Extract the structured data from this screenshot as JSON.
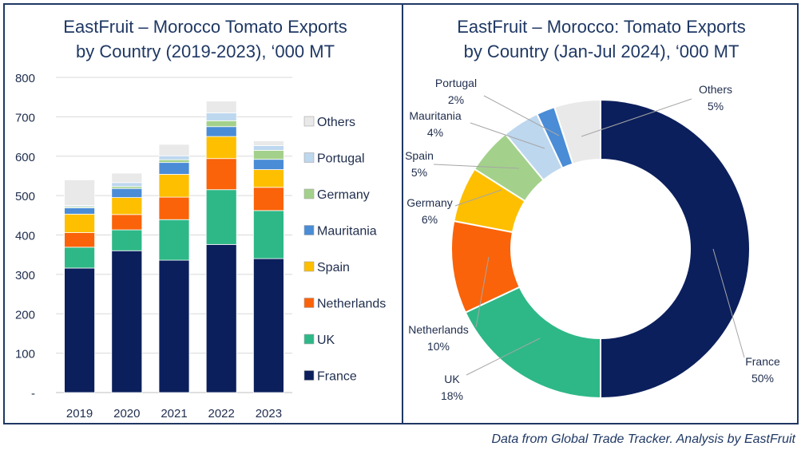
{
  "chart_data": [
    {
      "type": "bar",
      "stacked": true,
      "title": [
        "EastFruit – Morocco Tomato Exports",
        "by Country (2019-2023), ‘000 MT"
      ],
      "categories": [
        "2019",
        "2020",
        "2021",
        "2022",
        "2023"
      ],
      "ylim": [
        0,
        800
      ],
      "yticks": [
        0,
        100,
        200,
        300,
        400,
        500,
        600,
        700,
        800
      ],
      "ytick_labels": [
        "-",
        "100",
        "200",
        "300",
        "400",
        "500",
        "600",
        "700",
        "800"
      ],
      "grid": true,
      "legend_position": "right",
      "series": [
        {
          "name": "France",
          "color": "#0b1f5c",
          "values": [
            316,
            360,
            336,
            376,
            340
          ]
        },
        {
          "name": "UK",
          "color": "#2eb887",
          "values": [
            53,
            53,
            103,
            139,
            122
          ]
        },
        {
          "name": "Netherlands",
          "color": "#fa6309",
          "values": [
            37,
            39,
            57,
            79,
            59
          ]
        },
        {
          "name": "Spain",
          "color": "#fdbf00",
          "values": [
            47,
            43,
            58,
            56,
            45
          ]
        },
        {
          "name": "Mauritania",
          "color": "#4a8cd6",
          "values": [
            16,
            23,
            30,
            25,
            26
          ]
        },
        {
          "name": "Germany",
          "color": "#a3d18b",
          "values": [
            3,
            5,
            7,
            15,
            23
          ]
        },
        {
          "name": "Portugal",
          "color": "#bdd7ee",
          "values": [
            3,
            10,
            10,
            20,
            12
          ]
        },
        {
          "name": "Others",
          "color": "#e9e9e9",
          "values": [
            65,
            24,
            29,
            30,
            12
          ]
        }
      ]
    },
    {
      "type": "pie",
      "donut": true,
      "title": [
        "EastFruit – Morocco: Tomato Exports",
        "by Country (Jan-Jul 2024), ‘000 MT"
      ],
      "slices": [
        {
          "name": "France",
          "value": 50,
          "label": "50%",
          "color": "#0b1f5c"
        },
        {
          "name": "UK",
          "value": 18,
          "label": "18%",
          "color": "#2eb887"
        },
        {
          "name": "Netherlands",
          "value": 10,
          "label": "10%",
          "color": "#fa6309"
        },
        {
          "name": "Germany",
          "value": 6,
          "label": "6%",
          "color": "#fdbf00"
        },
        {
          "name": "Spain",
          "value": 5,
          "label": "5%",
          "color": "#a3d18b"
        },
        {
          "name": "Mauritania",
          "value": 4,
          "label": "4%",
          "color": "#bdd7ee"
        },
        {
          "name": "Portugal",
          "value": 2,
          "label": "2%",
          "color": "#4a8cd6"
        },
        {
          "name": "Others",
          "value": 5,
          "label": "5%",
          "color": "#e9e9e9"
        }
      ]
    }
  ],
  "footer": "Data from Global Trade Tracker. Analysis by EastFruit"
}
